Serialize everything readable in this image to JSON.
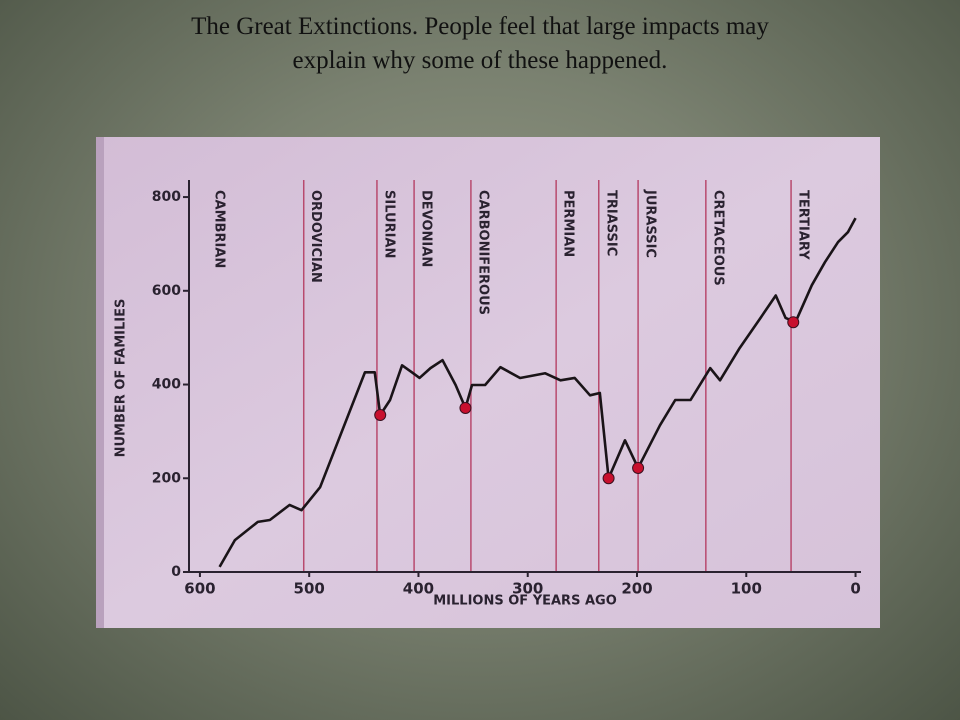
{
  "chart_data": {
    "type": "line",
    "title": [
      "The Great Extinctions. People feel that large impacts may",
      "explain why some of these happened."
    ],
    "y_label": "NUMBER OF FAMILIES",
    "x_label": "MILLIONS OF YEARS AGO",
    "x": [
      582,
      568,
      547,
      536,
      518,
      507,
      490,
      449,
      440,
      435,
      426,
      415,
      406,
      399,
      389,
      378,
      366,
      357,
      351,
      339,
      325,
      307,
      284,
      270,
      257,
      243,
      234,
      226,
      211,
      199,
      179,
      165,
      151,
      133,
      124,
      106,
      87,
      73,
      64,
      55,
      40,
      28,
      16,
      7,
      0
    ],
    "values": [
      11,
      68,
      107,
      111,
      143,
      132,
      181,
      426,
      426,
      335,
      367,
      441,
      426,
      414,
      435,
      452,
      399,
      350,
      399,
      399,
      437,
      414,
      424,
      409,
      414,
      377,
      382,
      200,
      281,
      222,
      313,
      367,
      367,
      435,
      409,
      478,
      542,
      590,
      542,
      533,
      612,
      661,
      704,
      725,
      755
    ],
    "color": "#1a1418",
    "markers": {
      "x": [
        435,
        357,
        226,
        199,
        57
      ],
      "values": [
        335,
        350,
        200,
        222,
        533
      ],
      "color": "#c8102e"
    },
    "periods": [
      "CAMBRIAN",
      "ORDOVICIAN",
      "SILURIAN",
      "DEVONIAN",
      "CARBONIFEROUS",
      "PERMIAN",
      "TRIASSIC",
      "JURASSIC",
      "CRETACEOUS",
      "TERTIARY"
    ],
    "period_boundaries": [
      505,
      438,
      404,
      352,
      274,
      235,
      199,
      137,
      59
    ],
    "boundary_color": "#b84a6e",
    "xlim": [
      610,
      -5
    ],
    "xticks": [
      600,
      500,
      400,
      300,
      200,
      100,
      0
    ],
    "ylim": [
      0,
      830
    ],
    "yticks": [
      0,
      200,
      400,
      600,
      800
    ]
  }
}
